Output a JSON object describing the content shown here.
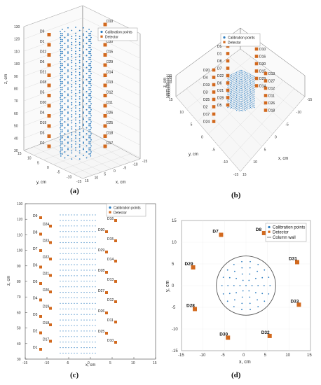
{
  "colors": {
    "calib": "#2a7bbf",
    "detector": "#d2691e",
    "wall": "#555555",
    "grid": "#d6d6d6",
    "axis": "#666666"
  },
  "panel_a": {
    "caption": "(a)",
    "legend": {
      "calib": "Calibration points",
      "detector": "Detector"
    },
    "zlabel": "z, cm",
    "xlabel": "x, cm",
    "ylabel": "y, cm",
    "zticks": [
      "130",
      "120",
      "110",
      "100",
      "90",
      "80",
      "70",
      "60",
      "50",
      "40",
      "30"
    ],
    "xticks": [
      "15",
      "10",
      "5",
      "0",
      "-5",
      "-10",
      "-15"
    ],
    "yticks": [
      "15",
      "10",
      "5",
      "0",
      "-5",
      "-10",
      "-15"
    ],
    "detectors": [
      {
        "label": "D10",
        "side": "r",
        "row": 0
      },
      {
        "label": "D9",
        "side": "l",
        "row": 1
      },
      {
        "label": "D16",
        "side": "r",
        "row": 1
      },
      {
        "label": "D1",
        "side": "l",
        "row": 2
      },
      {
        "label": "D30",
        "side": "r",
        "row": 2
      },
      {
        "label": "D22",
        "side": "l",
        "row": 3
      },
      {
        "label": "D15",
        "side": "r",
        "row": 3
      },
      {
        "label": "D6",
        "side": "l",
        "row": 4
      },
      {
        "label": "D29",
        "side": "r",
        "row": 4
      },
      {
        "label": "D21",
        "side": "l",
        "row": 5
      },
      {
        "label": "D14",
        "side": "r",
        "row": 5
      },
      {
        "label": "D28",
        "side": "l",
        "row": 6
      },
      {
        "label": "D13",
        "side": "r",
        "row": 6
      },
      {
        "label": "D5",
        "side": "l",
        "row": 7
      },
      {
        "label": "D12",
        "side": "r",
        "row": 7
      },
      {
        "label": "D20",
        "side": "l",
        "row": 8
      },
      {
        "label": "D11",
        "side": "r",
        "row": 8
      },
      {
        "label": "D4",
        "side": "l",
        "row": 9
      },
      {
        "label": "D26",
        "side": "r",
        "row": 9
      },
      {
        "label": "D19",
        "side": "l",
        "row": 10
      },
      {
        "label": "D25",
        "side": "r",
        "row": 10
      },
      {
        "label": "D3",
        "side": "l",
        "row": 11
      },
      {
        "label": "D18",
        "side": "r",
        "row": 11
      },
      {
        "label": "D2",
        "side": "l",
        "row": 12
      },
      {
        "label": "D17",
        "side": "r",
        "row": 12
      }
    ]
  },
  "panel_b": {
    "caption": "(b)",
    "legend": {
      "calib": "Calibration points",
      "detector": "Detector"
    },
    "zlabel": "z, cm",
    "xlabel": "x, cm",
    "ylabel": "y, cm",
    "zticks": [
      "130",
      "120",
      "110",
      "100",
      "90",
      "80",
      "70",
      "60",
      "50",
      "40",
      "30"
    ],
    "xticks": [
      "15",
      "10",
      "5",
      "0",
      "-5",
      "-10",
      "-15"
    ],
    "yticks": [
      "15",
      "10",
      "5",
      "0",
      "-5",
      "-10",
      "-15"
    ],
    "left_labels": [
      "D9",
      "D1",
      "D8",
      "D7",
      "D22",
      "D6",
      "D21",
      "D28",
      "D5",
      "D20",
      "D4",
      "D19",
      "D3",
      "D25",
      "D2",
      "D17",
      "D24"
    ],
    "right_labels": [
      "D10",
      "D16",
      "D30",
      "D15",
      "D29",
      "D14",
      "D13",
      "D27",
      "D12",
      "D11",
      "D26",
      "D18"
    ]
  },
  "panel_c": {
    "caption": "(c)",
    "legend": {
      "calib": "Calibration points",
      "detector": "Detector"
    },
    "zlabel": "z, cm",
    "xlabel": "x, cm",
    "zticks": [
      "130",
      "120",
      "110",
      "100",
      "90",
      "80",
      "70",
      "60",
      "50",
      "40",
      "30"
    ],
    "xticks": [
      "-15",
      "-10",
      "-5",
      "0",
      "5",
      "10",
      "15"
    ],
    "left_labels": [
      "D9",
      "D8",
      "D7",
      "D6",
      "D5",
      "D4",
      "D3",
      "D2",
      "D1",
      "D24",
      "D23",
      "D22",
      "D21",
      "D20",
      "D19",
      "D18",
      "D17"
    ],
    "right_labels": [
      "D16",
      "D15",
      "D14",
      "D13",
      "D12",
      "D11",
      "D10",
      "D30",
      "D29",
      "D28",
      "D27",
      "D26",
      "D25"
    ]
  },
  "panel_d": {
    "caption": "(d)",
    "legend": {
      "calib": "Calibration points",
      "detector": "Detector",
      "wall": "Column wall"
    },
    "xlabel": "x, cm",
    "ylabel": "y, cm",
    "chart_data": {
      "type": "scatter",
      "xlim": [
        -15,
        15
      ],
      "ylim": [
        -15,
        15
      ],
      "xticks": [
        "-15",
        "-10",
        "-5",
        "0",
        "5",
        "10",
        "15"
      ],
      "yticks": [
        "15",
        "10",
        "5",
        "0",
        "-5",
        "-10",
        "-15"
      ],
      "column_radius": 6.9,
      "detectors": [
        {
          "label": "D7",
          "x": -5.8,
          "y": 11.7
        },
        {
          "label": "D8",
          "x": 4.2,
          "y": 12.1
        },
        {
          "label": "D31",
          "x": 11.9,
          "y": 5.4
        },
        {
          "label": "D33",
          "x": 12.3,
          "y": -4.4
        },
        {
          "label": "D29",
          "x": -12.3,
          "y": 4.2
        },
        {
          "label": "D28",
          "x": -11.9,
          "y": -5.4
        },
        {
          "label": "D30",
          "x": -4.2,
          "y": -12.0
        },
        {
          "label": "D32",
          "x": 5.5,
          "y": -11.6
        }
      ]
    }
  }
}
